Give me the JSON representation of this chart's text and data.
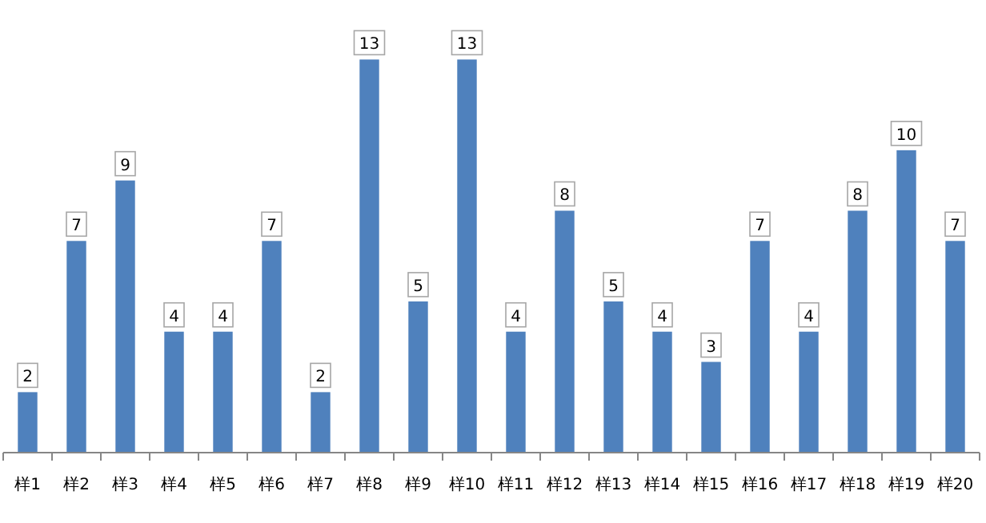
{
  "chart_data": {
    "type": "bar",
    "categories": [
      "样1",
      "样2",
      "样3",
      "样4",
      "样5",
      "样6",
      "样7",
      "样8",
      "样9",
      "样10",
      "样11",
      "样12",
      "样13",
      "样14",
      "样15",
      "样16",
      "样17",
      "样18",
      "样19",
      "样20"
    ],
    "values": [
      2,
      7,
      9,
      4,
      4,
      7,
      2,
      13,
      5,
      13,
      4,
      8,
      5,
      4,
      3,
      7,
      4,
      8,
      10,
      7
    ],
    "color": "#4f81bd",
    "data_labels": true
  }
}
